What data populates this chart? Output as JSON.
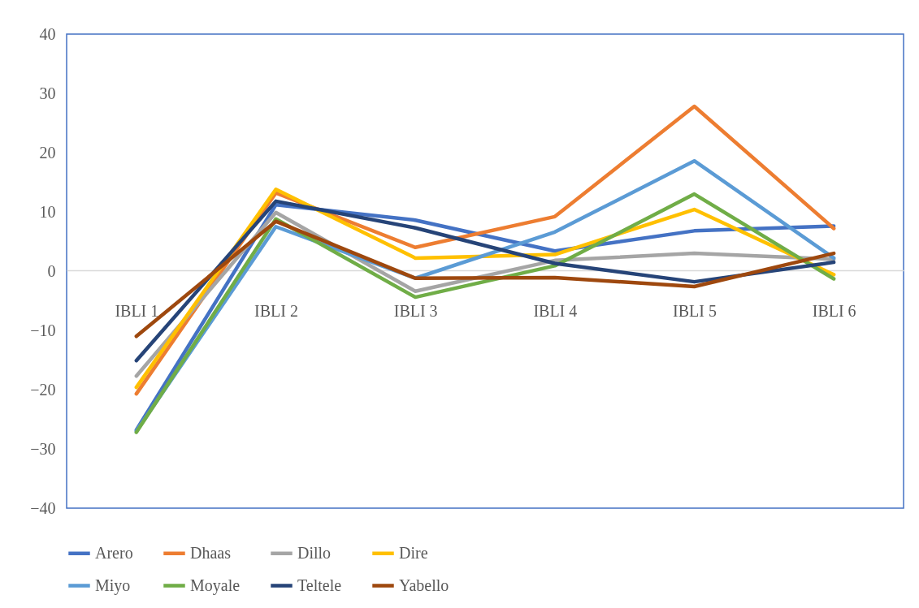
{
  "chart_data": {
    "type": "line",
    "categories": [
      "IBLI 1",
      "IBLI 2",
      "IBLI 3",
      "IBLI 4",
      "IBLI 5",
      "IBLI 6"
    ],
    "ylim": [
      -40,
      40
    ],
    "yticks": [
      -40,
      -30,
      -20,
      -10,
      0,
      10,
      20,
      30,
      40
    ],
    "legend": "bottom",
    "series": [
      {
        "name": "Arero",
        "color": "#4472c4",
        "values": [
          -26.8,
          11.2,
          8.6,
          3.4,
          6.8,
          7.6
        ]
      },
      {
        "name": "Dhaas",
        "color": "#ed7d31",
        "values": [
          -20.7,
          13.2,
          4.0,
          9.2,
          27.8,
          7.2
        ]
      },
      {
        "name": "Dillo",
        "color": "#a5a5a5",
        "values": [
          -17.7,
          9.9,
          -3.4,
          1.8,
          3.0,
          2.0
        ]
      },
      {
        "name": "Dire",
        "color": "#ffc000",
        "values": [
          -19.6,
          13.8,
          2.2,
          2.8,
          10.4,
          -0.6
        ]
      },
      {
        "name": "Miyo",
        "color": "#5b9bd5",
        "values": [
          -27.0,
          7.5,
          -1.2,
          6.6,
          18.6,
          2.2
        ]
      },
      {
        "name": "Moyale",
        "color": "#70ad47",
        "values": [
          -27.2,
          8.8,
          -4.4,
          0.9,
          13.0,
          -1.3
        ]
      },
      {
        "name": "Teltele",
        "color": "#264478",
        "values": [
          -15.1,
          11.8,
          7.3,
          1.3,
          -1.8,
          1.5
        ]
      },
      {
        "name": "Yabello",
        "color": "#9e480e",
        "values": [
          -11.0,
          8.4,
          -1.2,
          -1.1,
          -2.6,
          3.0
        ]
      }
    ]
  }
}
